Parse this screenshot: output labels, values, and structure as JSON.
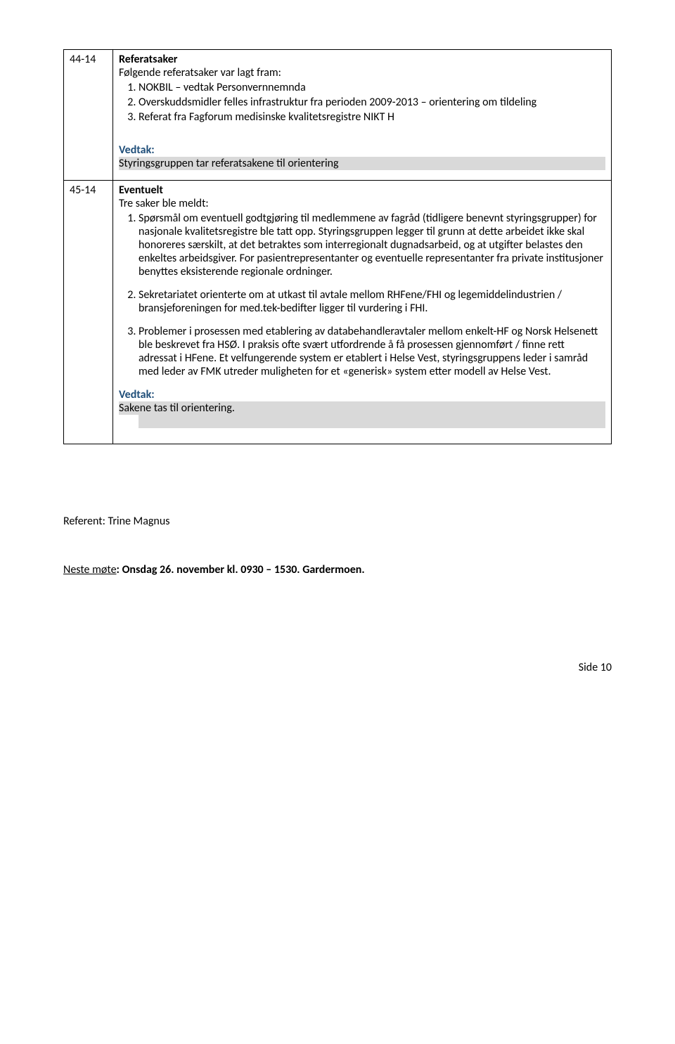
{
  "item44": {
    "num": "44-14",
    "title": "Referatsaker",
    "intro": "Følgende referatsaker var lagt fram:",
    "points": [
      "NOKBIL – vedtak Personvernnemnda",
      "Overskuddsmidler felles infrastruktur fra perioden 2009-2013 – orientering om tildeling",
      "Referat fra Fagforum medisinske kvalitetsregistre NIKT H"
    ],
    "vedtak_label": "Vedtak:",
    "vedtak_text": "Styringsgruppen tar referatsakene til orientering"
  },
  "item45": {
    "num": "45-14",
    "title": "Eventuelt",
    "intro": "Tre saker ble meldt:",
    "points": [
      "Spørsmål om eventuell godtgjøring til medlemmene av fagråd (tidligere benevnt styringsgrupper) for nasjonale kvalitetsregistre ble tatt opp. Styringsgruppen legger til grunn at dette arbeidet ikke skal honoreres særskilt, at det betraktes som interregionalt dugnadsarbeid, og at utgifter belastes den enkeltes arbeidsgiver. For pasientrepresentanter og eventuelle representanter fra private institusjoner benyttes eksisterende regionale ordninger.",
      "Sekretariatet orienterte om at utkast til avtale mellom RHFene/FHI  og legemiddelindustrien / bransjeforeningen for med.tek-bedifter ligger til vurdering i FHI.",
      "Problemer i prosessen med etablering av databehandleravtaler mellom enkelt-HF og Norsk Helsenett ble beskrevet fra HSØ. I praksis  ofte svært utfordrende å få prosessen gjennomført / finne rett adressat i HFene. Et velfungerende system er etablert i Helse Vest, styringsgruppens leder i samråd med leder av FMK utreder muligheten for et «generisk» system etter modell av Helse Vest."
    ],
    "vedtak_label": "Vedtak:",
    "vedtak_text": "Sakene tas til orientering."
  },
  "referent": "Referent: Trine Magnus",
  "next_label": "Neste møte",
  "next_text": ": Onsdag 26. november kl. 0930 – 1530. Gardermoen.",
  "page_number": "Side 10"
}
